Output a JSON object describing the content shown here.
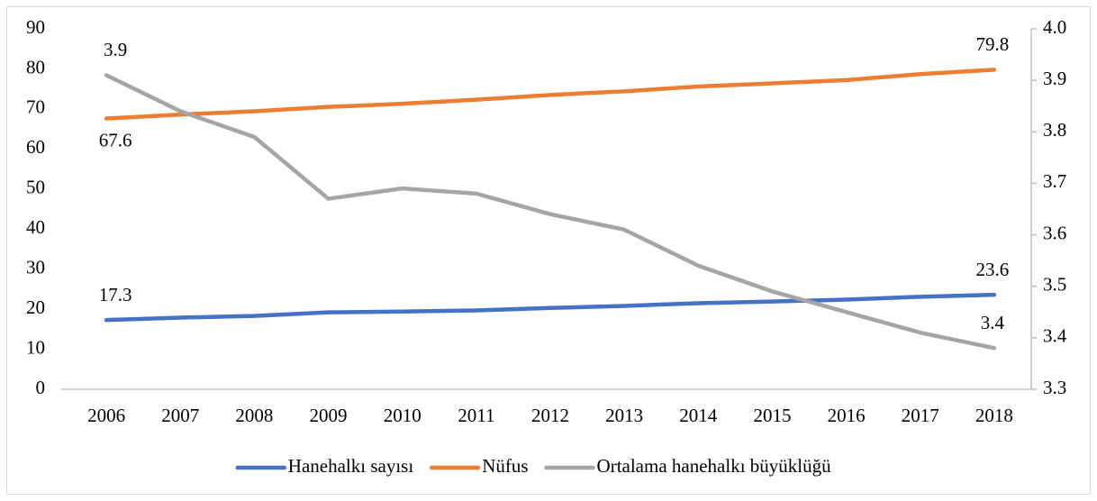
{
  "chart_data": {
    "type": "line",
    "categories": [
      "2006",
      "2007",
      "2008",
      "2009",
      "2010",
      "2011",
      "2012",
      "2013",
      "2014",
      "2015",
      "2016",
      "2017",
      "2018"
    ],
    "series": [
      {
        "name": "Hanehalkı sayısı",
        "color": "#4472c4",
        "values": [
          17.3,
          17.9,
          18.3,
          19.2,
          19.4,
          19.7,
          20.3,
          20.8,
          21.5,
          21.9,
          22.4,
          23.1,
          23.6
        ],
        "value_labels": [
          "17.3",
          null,
          null,
          null,
          null,
          null,
          null,
          null,
          null,
          null,
          null,
          null,
          "23.6"
        ]
      },
      {
        "name": "Nüfus",
        "color": "#ed7d31",
        "values": [
          67.6,
          68.6,
          69.4,
          70.5,
          71.3,
          72.3,
          73.5,
          74.4,
          75.6,
          76.4,
          77.2,
          78.7,
          79.8
        ],
        "value_labels": [
          "67.6",
          null,
          null,
          null,
          null,
          null,
          null,
          null,
          null,
          null,
          null,
          null,
          "79.8"
        ]
      },
      {
        "name": "Ortalama hanehalkı büyüklüğü",
        "color": "#a5a5a5",
        "axis": "y2",
        "values": [
          3.91,
          3.84,
          3.79,
          3.67,
          3.69,
          3.68,
          3.64,
          3.61,
          3.54,
          3.49,
          3.45,
          3.41,
          3.38
        ],
        "value_labels": [
          "3.9",
          null,
          null,
          null,
          null,
          null,
          null,
          null,
          null,
          null,
          null,
          null,
          "3.4"
        ]
      }
    ],
    "ylim": [
      0,
      90
    ],
    "yticks": [
      0,
      10,
      20,
      30,
      40,
      50,
      60,
      70,
      80,
      90
    ],
    "y2lim": [
      3.3,
      4.0
    ],
    "y2ticks": [
      3.3,
      3.4,
      3.5,
      3.6,
      3.7,
      3.8,
      3.9,
      {
        "value": 4.0,
        "label": "4.0"
      }
    ],
    "legend": "bottom",
    "grid": false
  }
}
